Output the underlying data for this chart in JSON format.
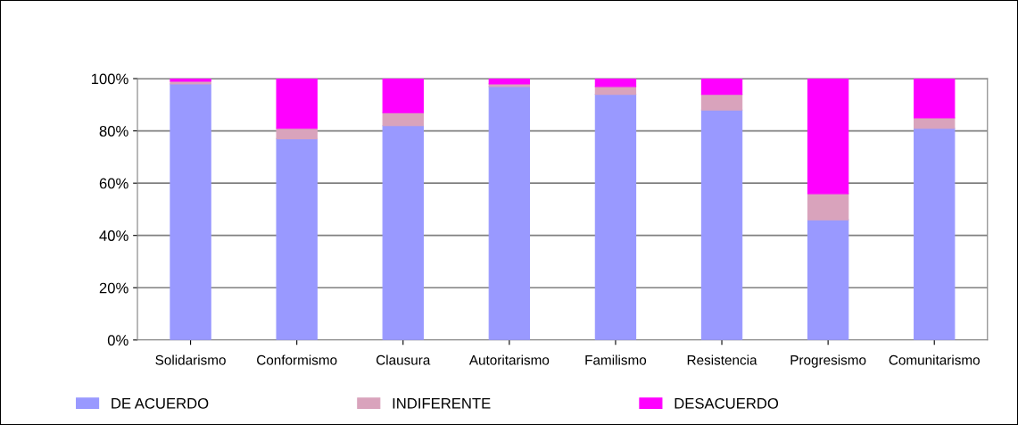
{
  "chart_data": {
    "type": "bar",
    "stacked": true,
    "categories": [
      "Solidarismo",
      "Conformismo",
      "Clausura",
      "Autoritarismo",
      "Familismo",
      "Resistencia",
      "Progresismo",
      "Comunitarismo"
    ],
    "series": [
      {
        "name": "DE ACUERDO",
        "color": "#9999ff",
        "values": [
          98,
          77,
          82,
          97,
          94,
          88,
          46,
          81
        ]
      },
      {
        "name": "INDIFERENTE",
        "color": "#d9a3bc",
        "values": [
          1,
          4,
          5,
          1,
          3,
          6,
          10,
          4
        ]
      },
      {
        "name": "DESACUERDO",
        "color": "#ff00ff",
        "values": [
          1,
          19,
          13,
          2,
          3,
          6,
          44,
          15
        ]
      }
    ],
    "ylim": [
      0,
      100
    ],
    "yticks": [
      {
        "value": 0,
        "label": "0%"
      },
      {
        "value": 20,
        "label": "20%"
      },
      {
        "value": 40,
        "label": "40%"
      },
      {
        "value": 60,
        "label": "60%"
      },
      {
        "value": 80,
        "label": "80%"
      },
      {
        "value": 100,
        "label": "100%"
      }
    ],
    "grid": "y",
    "legend": "bottom"
  }
}
